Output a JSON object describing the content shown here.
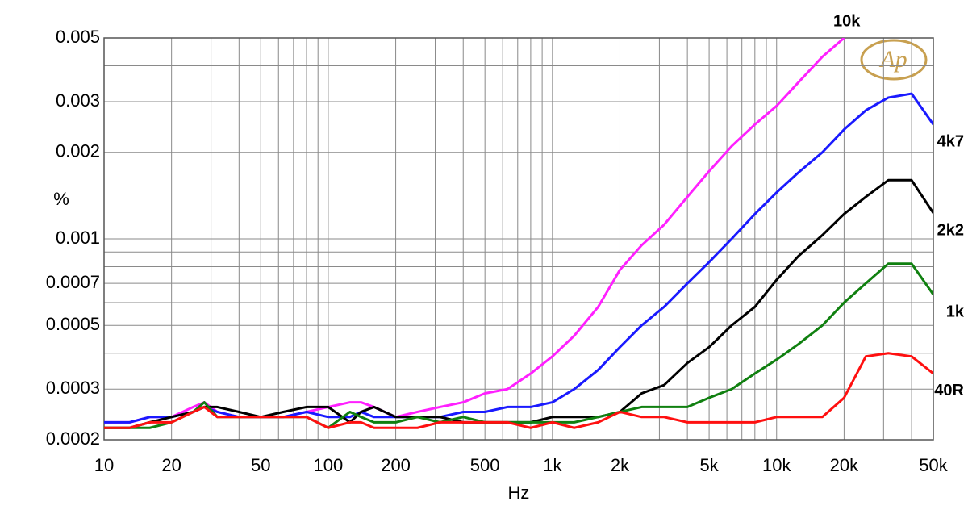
{
  "chart_data": {
    "type": "line",
    "x_label": "Hz",
    "y_label": "%",
    "logo": "Ap",
    "xscale": "log",
    "yscale": "log",
    "grid": true,
    "xlim": [
      10,
      50000
    ],
    "ylim": [
      0.0002,
      0.005
    ],
    "xticks": [
      10,
      20,
      50,
      100,
      200,
      500,
      {
        "value": 1000,
        "label": "1k"
      },
      {
        "value": 2000,
        "label": "2k"
      },
      {
        "value": 5000,
        "label": "5k"
      },
      {
        "value": 10000,
        "label": "10k"
      },
      {
        "value": 20000,
        "label": "20k"
      },
      {
        "value": 50000,
        "label": "50k"
      }
    ],
    "x_minor_ticks": [
      30,
      40,
      60,
      70,
      80,
      90,
      300,
      400,
      600,
      700,
      800,
      900,
      3000,
      4000,
      6000,
      7000,
      8000,
      9000,
      30000,
      40000
    ],
    "yticks": [
      0.005,
      0.003,
      0.002,
      0.001,
      0.0007,
      0.0005,
      0.0003,
      0.0002
    ],
    "y_minor_ticks": [
      0.004,
      0.0009,
      0.0008,
      0.0006,
      0.0004
    ],
    "x": [
      10,
      13,
      16,
      20,
      25,
      28,
      32,
      40,
      50,
      63,
      80,
      100,
      125,
      140,
      160,
      200,
      250,
      315,
      400,
      500,
      630,
      800,
      1000,
      1250,
      1600,
      2000,
      2500,
      3150,
      4000,
      5000,
      6300,
      8000,
      10000,
      12500,
      16000,
      20000,
      25000,
      31500,
      40000,
      50000
    ],
    "series": [
      {
        "name": "10k",
        "color": "#ff20ff",
        "values": [
          0.00023,
          0.00023,
          0.00024,
          0.00024,
          0.00026,
          0.00027,
          0.00025,
          0.00024,
          0.00024,
          0.00024,
          0.00025,
          0.00026,
          0.00027,
          0.00027,
          0.00026,
          0.00024,
          0.00025,
          0.00026,
          0.00027,
          0.00029,
          0.0003,
          0.00034,
          0.00039,
          0.00046,
          0.00058,
          0.00078,
          0.00095,
          0.00112,
          0.0014,
          0.00172,
          0.0021,
          0.0025,
          0.0029,
          0.0035,
          0.0043,
          0.005,
          null,
          null,
          null,
          null
        ]
      },
      {
        "name": "4k7",
        "color": "#1a1aff",
        "values": [
          0.00023,
          0.00023,
          0.00024,
          0.00024,
          0.00025,
          0.00026,
          0.00025,
          0.00024,
          0.00024,
          0.00024,
          0.00025,
          0.00024,
          0.00024,
          0.00025,
          0.00024,
          0.00024,
          0.00024,
          0.00024,
          0.00025,
          0.00025,
          0.00026,
          0.00026,
          0.00027,
          0.0003,
          0.00035,
          0.00042,
          0.0005,
          0.00058,
          0.0007,
          0.00083,
          0.001,
          0.00122,
          0.00145,
          0.0017,
          0.002,
          0.0024,
          0.0028,
          0.0031,
          0.0032,
          0.0025
        ]
      },
      {
        "name": "2k2",
        "color": "#000000",
        "values": [
          0.00022,
          0.00022,
          0.00023,
          0.00024,
          0.00025,
          0.00026,
          0.00026,
          0.00025,
          0.00024,
          0.00025,
          0.00026,
          0.00026,
          0.00023,
          0.00025,
          0.00026,
          0.00024,
          0.00024,
          0.00024,
          0.00023,
          0.00023,
          0.00023,
          0.00023,
          0.00024,
          0.00024,
          0.00024,
          0.00025,
          0.00029,
          0.00031,
          0.00037,
          0.00042,
          0.0005,
          0.00058,
          0.00072,
          0.00087,
          0.00103,
          0.00122,
          0.0014,
          0.0016,
          0.0016,
          0.00123
        ]
      },
      {
        "name": "1k",
        "color": "#108010",
        "values": [
          0.00022,
          0.00022,
          0.00022,
          0.00023,
          0.00025,
          0.00027,
          0.00024,
          0.00024,
          0.00024,
          0.00024,
          0.00024,
          0.00022,
          0.00025,
          0.00024,
          0.00023,
          0.00023,
          0.00024,
          0.00023,
          0.00024,
          0.00023,
          0.00023,
          0.00023,
          0.00023,
          0.00023,
          0.00024,
          0.00025,
          0.00026,
          0.00026,
          0.00026,
          0.00028,
          0.0003,
          0.00034,
          0.00038,
          0.00043,
          0.0005,
          0.0006,
          0.0007,
          0.00082,
          0.00082,
          0.00064
        ]
      },
      {
        "name": "40R",
        "color": "#ff1010",
        "values": [
          0.00022,
          0.00022,
          0.00023,
          0.00023,
          0.00025,
          0.00026,
          0.00024,
          0.00024,
          0.00024,
          0.00024,
          0.00024,
          0.00022,
          0.00023,
          0.00023,
          0.00022,
          0.00022,
          0.00022,
          0.00023,
          0.00023,
          0.00023,
          0.00023,
          0.00022,
          0.00023,
          0.00022,
          0.00023,
          0.00025,
          0.00024,
          0.00024,
          0.00023,
          0.00023,
          0.00023,
          0.00023,
          0.00024,
          0.00024,
          0.00024,
          0.00028,
          0.00039,
          0.0004,
          0.00039,
          0.00034
        ]
      }
    ]
  }
}
